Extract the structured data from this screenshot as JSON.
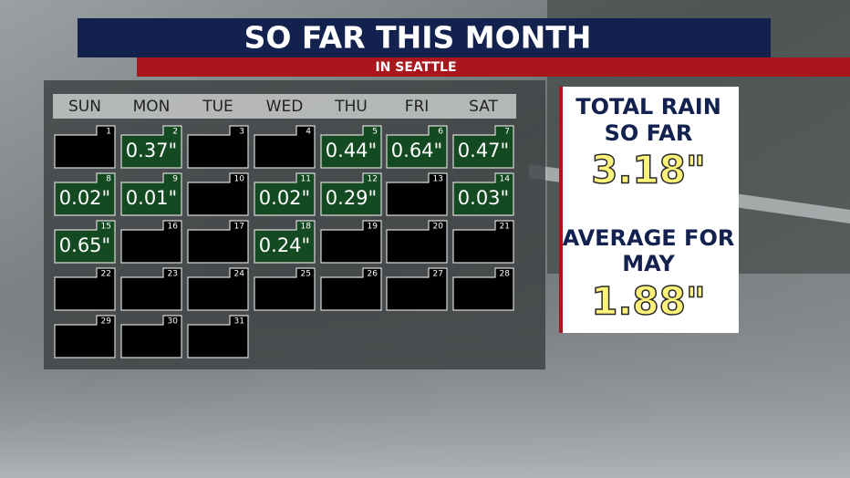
{
  "header": {
    "title": "SO FAR THIS MONTH",
    "subtitle": "IN SEATTLE"
  },
  "calendar": {
    "weekdays": [
      "SUN",
      "MON",
      "TUE",
      "WED",
      "THU",
      "FRI",
      "SAT"
    ],
    "days": [
      {
        "day": 1
      },
      {
        "day": 2,
        "rain": "0.37\""
      },
      {
        "day": 3
      },
      {
        "day": 4
      },
      {
        "day": 5,
        "rain": "0.44\""
      },
      {
        "day": 6,
        "rain": "0.64\""
      },
      {
        "day": 7,
        "rain": "0.47\""
      },
      {
        "day": 8,
        "rain": "0.02\""
      },
      {
        "day": 9,
        "rain": "0.01\""
      },
      {
        "day": 10
      },
      {
        "day": 11,
        "rain": "0.02\""
      },
      {
        "day": 12,
        "rain": "0.29\""
      },
      {
        "day": 13
      },
      {
        "day": 14,
        "rain": "0.03\""
      },
      {
        "day": 15,
        "rain": "0.65\""
      },
      {
        "day": 16
      },
      {
        "day": 17
      },
      {
        "day": 18,
        "rain": "0.24\""
      },
      {
        "day": 19
      },
      {
        "day": 20
      },
      {
        "day": 21
      },
      {
        "day": 22
      },
      {
        "day": 23
      },
      {
        "day": 24
      },
      {
        "day": 25
      },
      {
        "day": 26
      },
      {
        "day": 27
      },
      {
        "day": 28
      },
      {
        "day": 29
      },
      {
        "day": 30
      },
      {
        "day": 31
      }
    ]
  },
  "summary": {
    "total_label_1": "TOTAL RAIN",
    "total_label_2": "SO FAR",
    "total_value": "3.18\"",
    "average_label_1": "AVERAGE FOR",
    "average_label_2": "MAY",
    "average_value": "1.88\""
  }
}
